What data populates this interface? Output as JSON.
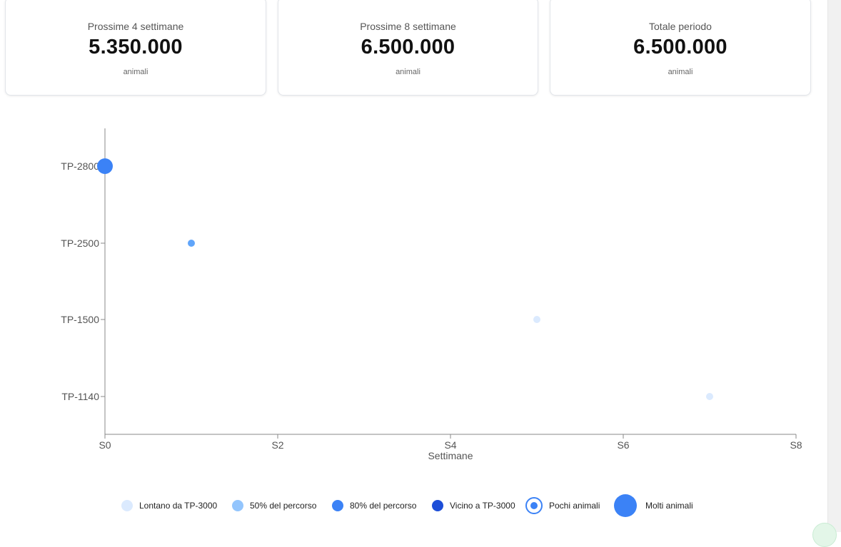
{
  "summary": [
    {
      "label": "Prossime 4 settimane",
      "value": "5.350.000",
      "unit": "animali"
    },
    {
      "label": "Prossime 8 settimane",
      "value": "6.500.000",
      "unit": "animali"
    },
    {
      "label": "Totale periodo",
      "value": "6.500.000",
      "unit": "animali"
    }
  ],
  "chart_data": {
    "type": "scatter",
    "xlabel": "Settimane",
    "x_ticks": [
      "S0",
      "S2",
      "S4",
      "S6",
      "S8"
    ],
    "xlim": [
      0,
      8
    ],
    "y_categories": [
      "TP-1140",
      "TP-1500",
      "TP-2500",
      "TP-2800"
    ],
    "points": [
      {
        "x": 0,
        "y": "TP-2800",
        "color": "#3b82f6",
        "size": "large"
      },
      {
        "x": 1,
        "y": "TP-2500",
        "color": "#60a5fa",
        "size": "small"
      },
      {
        "x": 5,
        "y": "TP-1500",
        "color": "#dbeafe",
        "size": "small"
      },
      {
        "x": 7,
        "y": "TP-1140",
        "color": "#dbeafe",
        "size": "small"
      }
    ]
  },
  "legend": [
    {
      "label": "Lontano da TP-3000",
      "color": "#dbeafe",
      "icon": "filled-circle"
    },
    {
      "label": "50% del percorso",
      "color": "#93c5fd",
      "icon": "filled-circle"
    },
    {
      "label": "80% del percorso",
      "color": "#3b82f6",
      "icon": "filled-circle"
    },
    {
      "label": "Vicino a TP-3000",
      "color": "#1d4ed8",
      "icon": "filled-circle"
    },
    {
      "label": "Pochi animali",
      "color": "#3b82f6",
      "icon": "ring-circle"
    },
    {
      "label": "Molti animali",
      "color": "#3b82f6",
      "icon": "large-circle"
    }
  ]
}
